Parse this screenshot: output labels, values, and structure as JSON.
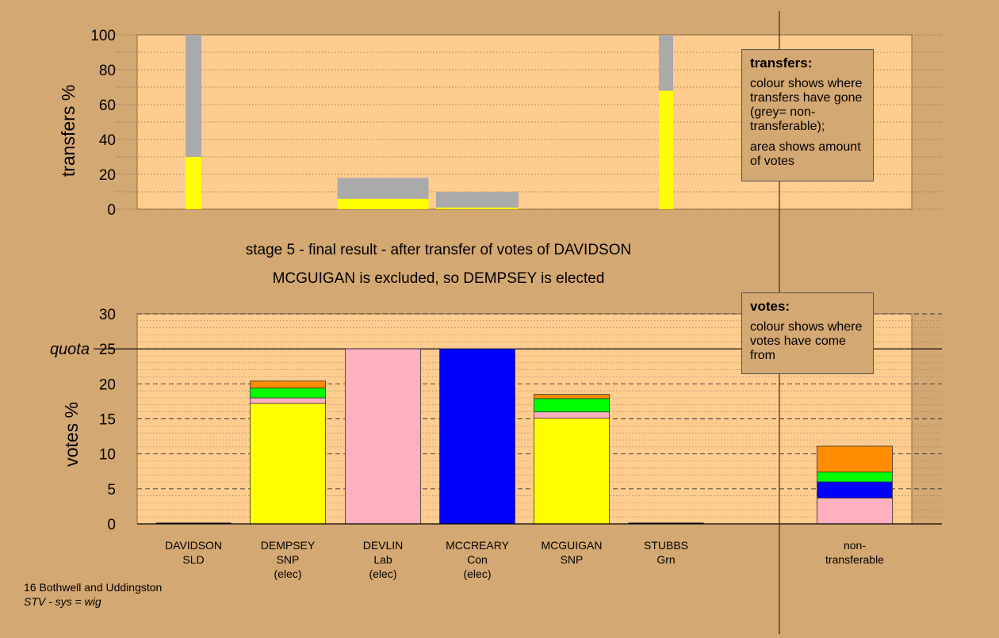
{
  "chart_data": [
    {
      "type": "bar",
      "id": "transfers",
      "stacked": true,
      "ylabel": "transfers %",
      "ylim": [
        0,
        100
      ],
      "yticks": [
        0,
        20,
        40,
        60,
        80,
        100
      ],
      "grid": true,
      "categories": [
        "DAVIDSON",
        "DEMPSEY",
        "DEVLIN",
        "MCCREARY",
        "MCGUIGAN",
        "STUBBS"
      ],
      "bars": [
        {
          "category": "DAVIDSON",
          "segments": [
            {
              "color": "#FFFF00",
              "value": 30
            },
            {
              "color": "#AAAAAA",
              "value": 70
            }
          ]
        },
        {
          "category": "DEVLIN",
          "segments": [
            {
              "color": "#FFFF00",
              "value": 6
            },
            {
              "color": "#AAAAAA",
              "value": 12
            }
          ]
        },
        {
          "category": "MCCREARY",
          "segments": [
            {
              "color": "#FFFF00",
              "value": 1
            },
            {
              "color": "#AAAAAA",
              "value": 9
            }
          ]
        },
        {
          "category": "STUBBS",
          "segments": [
            {
              "color": "#FFFF00",
              "value": 68
            },
            {
              "color": "#AAAAAA",
              "value": 32
            }
          ]
        }
      ]
    },
    {
      "type": "bar",
      "id": "votes",
      "stacked": true,
      "ylabel": "votes %",
      "ylim": [
        0,
        30
      ],
      "yticks": [
        0,
        5,
        10,
        15,
        20,
        25,
        30
      ],
      "grid": true,
      "quota": 25,
      "quota_label": "quota",
      "categories": [
        {
          "lines": [
            "DAVIDSON",
            "SLD"
          ]
        },
        {
          "lines": [
            "DEMPSEY",
            "SNP",
            "(elec)"
          ]
        },
        {
          "lines": [
            "DEVLIN",
            "Lab",
            "(elec)"
          ]
        },
        {
          "lines": [
            "MCCREARY",
            "Con",
            "(elec)"
          ]
        },
        {
          "lines": [
            "MCGUIGAN",
            "SNP"
          ]
        },
        {
          "lines": [
            "STUBBS",
            "Grn"
          ]
        },
        {
          "lines": [
            "non-",
            "transferable"
          ]
        }
      ],
      "bars": [
        {
          "category": "DAVIDSON",
          "segments": []
        },
        {
          "category": "DEMPSEY",
          "segments": [
            {
              "color": "#FFFF00",
              "value": 17.2
            },
            {
              "color": "#FFB0C0",
              "value": 0.8
            },
            {
              "color": "#00FF00",
              "value": 1.4
            },
            {
              "color": "#FF8C00",
              "value": 1.0
            }
          ]
        },
        {
          "category": "DEVLIN",
          "segments": [
            {
              "color": "#FFB0C0",
              "value": 25
            }
          ]
        },
        {
          "category": "MCCREARY",
          "segments": [
            {
              "color": "#0000FF",
              "value": 25
            }
          ]
        },
        {
          "category": "MCGUIGAN",
          "segments": [
            {
              "color": "#FFFF00",
              "value": 15.1
            },
            {
              "color": "#FFB0C0",
              "value": 0.9
            },
            {
              "color": "#00FF00",
              "value": 1.9
            },
            {
              "color": "#FF8C00",
              "value": 0.6
            }
          ]
        },
        {
          "category": "STUBBS",
          "segments": []
        },
        {
          "category": "non-transferable",
          "segments": [
            {
              "color": "#FFB0C0",
              "value": 3.7
            },
            {
              "color": "#0000FF",
              "value": 2.3
            },
            {
              "color": "#00FF00",
              "value": 1.4
            },
            {
              "color": "#FF8C00",
              "value": 3.7
            }
          ]
        }
      ]
    }
  ],
  "captions": {
    "line1": "stage 5 - final result - after transfer of votes of DAVIDSON",
    "line2": "MCGUIGAN is excluded, so DEMPSEY is elected"
  },
  "legend_transfers": {
    "title": "transfers:",
    "text1": "colour shows where transfers have gone (grey= non-transferable);",
    "text2": "area shows amount of votes"
  },
  "legend_votes": {
    "title": "votes:",
    "text1": "colour shows where votes have come from"
  },
  "footer": {
    "line1": "16 Bothwell and Uddingston",
    "line2": "STV - sys = wig"
  },
  "colors": {
    "background": "#D4A872",
    "plot_background": "#FFCC90",
    "non_transferable": "#AAAAAA"
  }
}
